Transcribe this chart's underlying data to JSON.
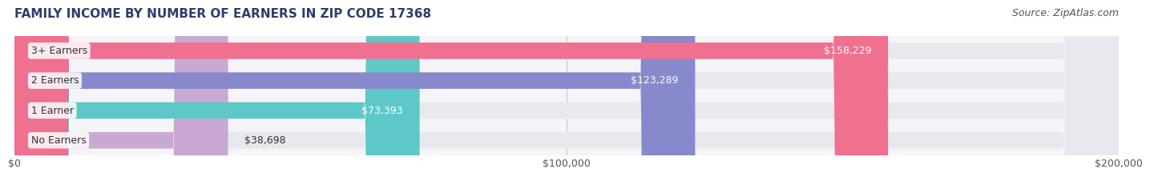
{
  "title": "FAMILY INCOME BY NUMBER OF EARNERS IN ZIP CODE 17368",
  "source": "Source: ZipAtlas.com",
  "categories": [
    "No Earners",
    "1 Earner",
    "2 Earners",
    "3+ Earners"
  ],
  "values": [
    38698,
    73393,
    123289,
    158229
  ],
  "value_labels": [
    "$38,698",
    "$73,393",
    "$123,289",
    "$158,229"
  ],
  "bar_colors": [
    "#c9a8d4",
    "#5ec8c8",
    "#8888cc",
    "#f07090"
  ],
  "bar_bg_color": "#e8e8ee",
  "xlim": [
    0,
    200000
  ],
  "xtick_values": [
    0,
    100000,
    200000
  ],
  "xtick_labels": [
    "$0",
    "$100,000",
    "$200,000"
  ],
  "title_color": "#2c3e6b",
  "title_fontsize": 11,
  "source_fontsize": 9,
  "label_fontsize": 9,
  "tick_fontsize": 9,
  "bar_height": 0.55,
  "label_color_inside": "#ffffff",
  "label_color_outside": "#333333",
  "background_color": "#ffffff",
  "plot_bg_color": "#f5f5f8"
}
